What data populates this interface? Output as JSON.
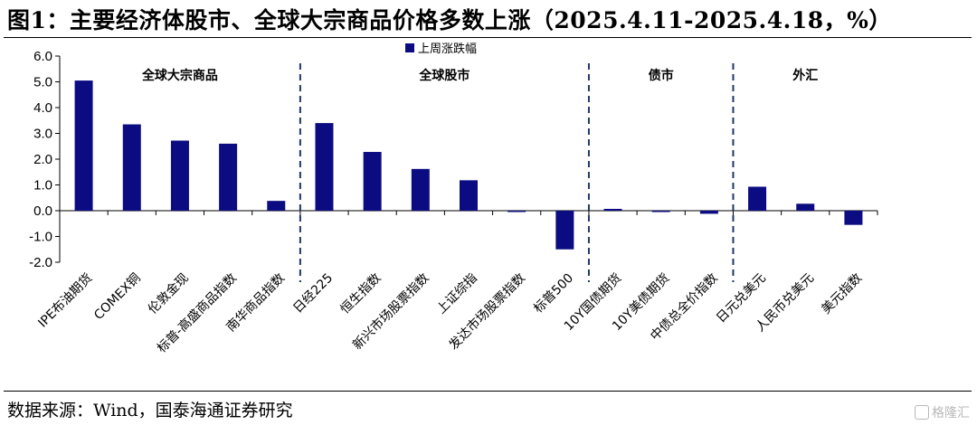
{
  "title": "图1：主要经济体股市、全球大宗商品价格多数上涨（2025.4.11-2025.4.18，%）",
  "source": "数据来源：Wind，国泰海通证券研究",
  "watermark": "格隆汇",
  "colors": {
    "bar": "#0c0c82",
    "axis": "#000000",
    "divider": "#1f3864"
  },
  "chart_data": {
    "type": "bar",
    "title": "",
    "xlabel": "",
    "ylabel": "",
    "ylim": [
      -2.0,
      6.0
    ],
    "yticks": [
      "6.0",
      "5.0",
      "4.0",
      "3.0",
      "2.0",
      "1.0",
      "0.0",
      "-1.0",
      "-2.0"
    ],
    "legend": {
      "position": "top-center"
    },
    "categories": [
      "IPE布油期货",
      "COMEX铜",
      "伦敦金现",
      "标普-高盛商品指数",
      "南华商品指数",
      "日经225",
      "恒生指数",
      "新兴市场股票指数",
      "上证综指",
      "发达市场股票指数",
      "标普500",
      "10Y国债期货",
      "10Y美债期货",
      "中债总全价指数",
      "日元兑美元",
      "人民币兑美元",
      "美元指数"
    ],
    "series": [
      {
        "name": "上周涨跌幅",
        "values": [
          5.05,
          3.35,
          2.72,
          2.6,
          0.38,
          3.4,
          2.28,
          1.62,
          1.18,
          -0.05,
          -1.5,
          0.07,
          -0.04,
          -0.12,
          0.93,
          0.27,
          -0.55
        ]
      }
    ],
    "groups": [
      {
        "label": "全球大宗商品",
        "start": 0,
        "end": 4
      },
      {
        "label": "全球股市",
        "start": 5,
        "end": 10
      },
      {
        "label": "债市",
        "start": 11,
        "end": 13
      },
      {
        "label": "外汇",
        "start": 14,
        "end": 16
      }
    ]
  }
}
